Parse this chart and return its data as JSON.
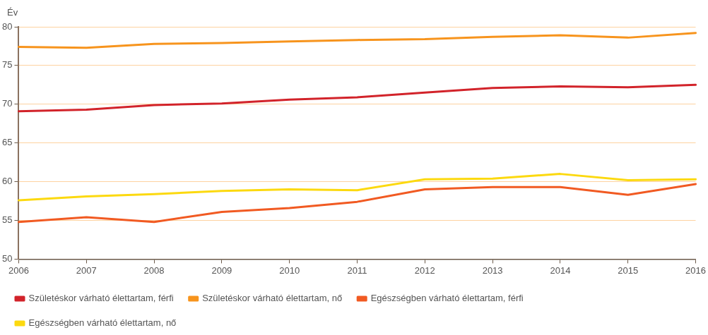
{
  "chart_data": {
    "type": "line",
    "ylabel": "Év",
    "categories": [
      "2006",
      "2007",
      "2008",
      "2009",
      "2010",
      "2011",
      "2012",
      "2013",
      "2014",
      "2015",
      "2016"
    ],
    "series": [
      {
        "name": "Születéskor várható élettartam, férfi",
        "color": "#d2232a",
        "values": [
          69.1,
          69.3,
          69.9,
          70.1,
          70.6,
          70.9,
          71.5,
          72.1,
          72.3,
          72.2,
          72.5
        ]
      },
      {
        "name": "Születéskor várható élettartam, nő",
        "color": "#f7941d",
        "values": [
          77.4,
          77.3,
          77.8,
          77.9,
          78.1,
          78.3,
          78.4,
          78.7,
          78.9,
          78.6,
          79.2
        ]
      },
      {
        "name": "Egészségben várható élettartam, férfi",
        "color": "#f15a22",
        "values": [
          54.8,
          55.4,
          54.8,
          56.1,
          56.6,
          57.4,
          59.0,
          59.3,
          59.3,
          58.3,
          59.7
        ]
      },
      {
        "name": "Egészségben várható élettartam, nő",
        "color": "#fcd90f",
        "values": [
          57.6,
          58.1,
          58.4,
          58.8,
          59.0,
          58.9,
          60.3,
          60.4,
          61.0,
          60.2,
          60.3
        ]
      }
    ],
    "ylim": [
      50,
      80
    ],
    "yticks": [
      50,
      55,
      60,
      65,
      70,
      75,
      80
    ],
    "grid": "y",
    "legend": "bottom",
    "marker": "none",
    "line_style": "solid"
  }
}
